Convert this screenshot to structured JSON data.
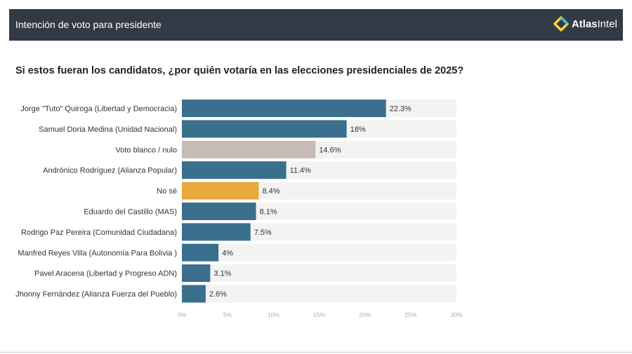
{
  "header": {
    "title": "Intención de voto para presidente",
    "logo_text_bold": "Atlas",
    "logo_text_light": "Intel"
  },
  "chart_data": {
    "type": "bar",
    "orientation": "horizontal",
    "title": "Si estos fueran los candidatos, ¿por quién votaría en las elecciones presidenciales de 2025?",
    "categories": [
      "Jorge \"Tuto\" Quiroga (Libertad y Democracia)",
      "Samuel Doria Medina (Unidad Nacional)",
      "Voto blanco / nulo",
      "Andrónico Rodríguez (Alianza Popular)",
      "No sé",
      "Eduardo del Castillo (MAS)",
      "Rodrigo Paz Pereira (Comunidad Ciudadana)",
      "Manfred Reyes Villa (Autonomía Para Bolivia )",
      "Pavel Aracena (Libertad y Progreso ADN)",
      "Jhonny Fernández (Alianza Fuerza del Pueblo)"
    ],
    "values": [
      22.3,
      18,
      14.6,
      11.4,
      8.4,
      8.1,
      7.5,
      4,
      3.1,
      2.6
    ],
    "data_labels": [
      "22.3%",
      "18%",
      "14.6%",
      "11.4%",
      "8.4%",
      "8.1%",
      "7.5%",
      "4%",
      "3.1%",
      "2.6%"
    ],
    "colors": [
      "#3a6f8d",
      "#3a6f8d",
      "#c6bbb5",
      "#3a6f8d",
      "#e8a93c",
      "#3a6f8d",
      "#3a6f8d",
      "#3a6f8d",
      "#3a6f8d",
      "#3a6f8d"
    ],
    "track_color": "#f3f3f2",
    "xlim": [
      0,
      30
    ],
    "xticks": [
      "0%",
      "5%",
      "10%",
      "15%",
      "20%",
      "25%",
      "30%"
    ],
    "grid": false
  }
}
